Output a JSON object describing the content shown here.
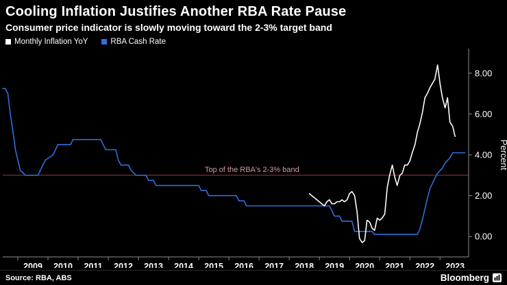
{
  "header": {
    "title": "Cooling Inflation Justifies Another RBA Rate Pause",
    "subtitle": "Consumer price indicator is slowly moving toward the 2-3% target band"
  },
  "legend": [
    {
      "label": "Monthly Inflation YoY",
      "color": "#ffffff"
    },
    {
      "label": "RBA Cash Rate",
      "color": "#2F6FDE"
    }
  ],
  "chart_data": {
    "type": "line",
    "title": "Cooling Inflation Justifies Another RBA Rate Pause",
    "subtitle": "Consumer price indicator is slowly moving toward the 2-3% target band",
    "ylabel": "Percent",
    "ylim": [
      -1,
      9
    ],
    "yticks": [
      0,
      2,
      4,
      6,
      8
    ],
    "ytick_labels": [
      "0.00",
      "2.00",
      "4.00",
      "6.00",
      "8.00"
    ],
    "xlim": [
      2008.5,
      2023.95
    ],
    "xticks": [
      2009,
      2010,
      2011,
      2012,
      2013,
      2014,
      2015,
      2016,
      2017,
      2018,
      2019,
      2020,
      2021,
      2022,
      2023
    ],
    "grid": false,
    "legend_position": "top-left",
    "axis_color": "#8f8f8f",
    "annotation": {
      "label": "Top of the RBA's 2-3% band",
      "y": 3.0,
      "label_x": 2015.2,
      "line_color": "#A23B3B",
      "text_color": "#D79C9C"
    },
    "series": [
      {
        "name": "RBA Cash Rate",
        "color": "#2F6FDE",
        "points": [
          [
            2008.5,
            7.25
          ],
          [
            2008.58,
            7.25
          ],
          [
            2008.67,
            7.0
          ],
          [
            2008.75,
            6.0
          ],
          [
            2008.83,
            5.25
          ],
          [
            2008.92,
            4.25
          ],
          [
            2009.08,
            3.25
          ],
          [
            2009.25,
            3.0
          ],
          [
            2009.67,
            3.0
          ],
          [
            2009.75,
            3.25
          ],
          [
            2009.83,
            3.5
          ],
          [
            2009.92,
            3.75
          ],
          [
            2010.17,
            4.0
          ],
          [
            2010.25,
            4.25
          ],
          [
            2010.33,
            4.5
          ],
          [
            2010.75,
            4.5
          ],
          [
            2010.83,
            4.75
          ],
          [
            2011.75,
            4.75
          ],
          [
            2011.83,
            4.5
          ],
          [
            2011.92,
            4.25
          ],
          [
            2012.25,
            4.25
          ],
          [
            2012.33,
            3.75
          ],
          [
            2012.42,
            3.5
          ],
          [
            2012.67,
            3.5
          ],
          [
            2012.75,
            3.25
          ],
          [
            2012.92,
            3.0
          ],
          [
            2013.25,
            3.0
          ],
          [
            2013.33,
            2.75
          ],
          [
            2013.5,
            2.75
          ],
          [
            2013.58,
            2.5
          ],
          [
            2015.0,
            2.5
          ],
          [
            2015.08,
            2.25
          ],
          [
            2015.25,
            2.25
          ],
          [
            2015.33,
            2.0
          ],
          [
            2016.25,
            2.0
          ],
          [
            2016.33,
            1.75
          ],
          [
            2016.5,
            1.75
          ],
          [
            2016.58,
            1.5
          ],
          [
            2019.33,
            1.5
          ],
          [
            2019.42,
            1.25
          ],
          [
            2019.5,
            1.0
          ],
          [
            2019.67,
            1.0
          ],
          [
            2019.75,
            0.75
          ],
          [
            2020.08,
            0.75
          ],
          [
            2020.17,
            0.25
          ],
          [
            2020.75,
            0.25
          ],
          [
            2020.83,
            0.1
          ],
          [
            2022.25,
            0.1
          ],
          [
            2022.33,
            0.35
          ],
          [
            2022.42,
            0.85
          ],
          [
            2022.5,
            1.35
          ],
          [
            2022.58,
            1.85
          ],
          [
            2022.67,
            2.35
          ],
          [
            2022.75,
            2.6
          ],
          [
            2022.83,
            2.85
          ],
          [
            2022.92,
            3.1
          ],
          [
            2023.08,
            3.35
          ],
          [
            2023.17,
            3.6
          ],
          [
            2023.33,
            3.85
          ],
          [
            2023.42,
            4.1
          ],
          [
            2023.83,
            4.1
          ]
        ]
      },
      {
        "name": "Monthly Inflation YoY",
        "color": "#ffffff",
        "points": [
          [
            2018.67,
            2.1
          ],
          [
            2018.75,
            2.0
          ],
          [
            2018.83,
            1.9
          ],
          [
            2018.92,
            1.8
          ],
          [
            2019.0,
            1.7
          ],
          [
            2019.08,
            1.6
          ],
          [
            2019.17,
            1.5
          ],
          [
            2019.25,
            1.7
          ],
          [
            2019.33,
            1.8
          ],
          [
            2019.42,
            1.6
          ],
          [
            2019.5,
            1.6
          ],
          [
            2019.58,
            1.7
          ],
          [
            2019.67,
            1.7
          ],
          [
            2019.75,
            1.8
          ],
          [
            2019.83,
            1.7
          ],
          [
            2019.92,
            1.8
          ],
          [
            2020.0,
            2.1
          ],
          [
            2020.08,
            2.2
          ],
          [
            2020.17,
            2.0
          ],
          [
            2020.25,
            1.2
          ],
          [
            2020.33,
            -0.1
          ],
          [
            2020.42,
            -0.3
          ],
          [
            2020.5,
            -0.2
          ],
          [
            2020.58,
            0.8
          ],
          [
            2020.67,
            0.7
          ],
          [
            2020.75,
            0.4
          ],
          [
            2020.83,
            0.3
          ],
          [
            2020.92,
            0.9
          ],
          [
            2021.0,
            0.8
          ],
          [
            2021.08,
            0.9
          ],
          [
            2021.17,
            1.1
          ],
          [
            2021.25,
            2.4
          ],
          [
            2021.33,
            3.0
          ],
          [
            2021.42,
            3.5
          ],
          [
            2021.5,
            2.9
          ],
          [
            2021.58,
            2.5
          ],
          [
            2021.67,
            3.0
          ],
          [
            2021.75,
            3.1
          ],
          [
            2021.83,
            3.5
          ],
          [
            2021.92,
            3.5
          ],
          [
            2022.0,
            3.7
          ],
          [
            2022.08,
            4.1
          ],
          [
            2022.17,
            4.5
          ],
          [
            2022.25,
            5.1
          ],
          [
            2022.33,
            5.5
          ],
          [
            2022.42,
            6.1
          ],
          [
            2022.5,
            6.8
          ],
          [
            2022.58,
            7.0
          ],
          [
            2022.67,
            7.3
          ],
          [
            2022.75,
            7.5
          ],
          [
            2022.83,
            7.7
          ],
          [
            2022.92,
            8.4
          ],
          [
            2023.0,
            7.5
          ],
          [
            2023.08,
            6.8
          ],
          [
            2023.17,
            6.3
          ],
          [
            2023.25,
            6.8
          ],
          [
            2023.33,
            5.6
          ],
          [
            2023.42,
            5.4
          ],
          [
            2023.5,
            4.9
          ]
        ]
      }
    ]
  },
  "footer": {
    "source": "Source: RBA, ABS",
    "brand": "Bloomberg"
  }
}
